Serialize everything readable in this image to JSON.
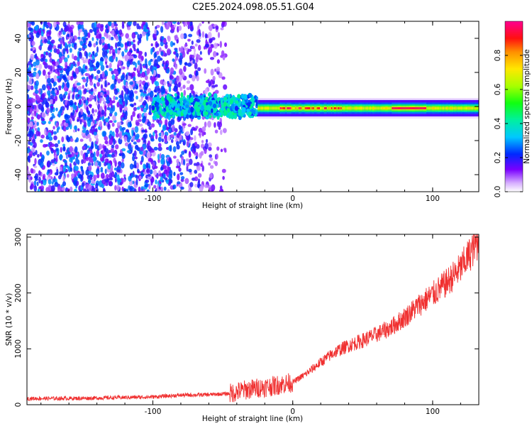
{
  "title": "C2E5.2024.098.05.51.G04",
  "colors": {
    "snr_line": "#f03030",
    "axis": "#000000",
    "background": "#ffffff"
  },
  "chart_data": [
    {
      "type": "heatmap",
      "name": "spectrogram",
      "title": "C2E5.2024.098.05.51.G04",
      "xlabel": "Height of straight line (km)",
      "ylabel": "Frequency (Hz)",
      "xlim": [
        -190,
        133
      ],
      "ylim": [
        -50,
        50
      ],
      "xticks": [
        -100,
        0,
        100
      ],
      "xtick_labels": [
        "-100",
        "0",
        "100"
      ],
      "yticks": [
        -40,
        -20,
        0,
        20,
        40
      ],
      "ytick_labels": [
        "-40",
        "-20",
        "0",
        "20",
        "40"
      ],
      "colorbar": {
        "label": "Normalized spectral amplitude",
        "range": [
          0,
          1
        ],
        "ticks": [
          0,
          0.2,
          0.4,
          0.6,
          0.8
        ],
        "tick_labels": [
          "0.0",
          "0.2",
          "0.4",
          "0.6",
          "0.8"
        ]
      },
      "features": [
        {
          "region": "noise",
          "x_range": [
            -190,
            -48
          ],
          "y_range": [
            -50,
            50
          ],
          "amplitude": [
            0.05,
            0.3
          ]
        },
        {
          "region": "signal_onset",
          "x_range": [
            -100,
            -25
          ],
          "center_freq": 0,
          "half_width": 6,
          "amplitude": [
            0.2,
            0.45
          ]
        },
        {
          "region": "tracking",
          "x_range": [
            -25,
            133
          ],
          "center_freq": -1,
          "half_width": 3,
          "amplitude": [
            0.5,
            1.0
          ]
        }
      ]
    },
    {
      "type": "line",
      "name": "snr",
      "xlabel": "Height of straight line (km)",
      "ylabel": "SNR (10 * v/v)",
      "xlim": [
        -190,
        133
      ],
      "ylim": [
        0,
        3050
      ],
      "xticks": [
        -100,
        0,
        100
      ],
      "xtick_labels": [
        "-100",
        "0",
        "100"
      ],
      "yticks": [
        0,
        1000,
        2000,
        3000
      ],
      "ytick_labels": [
        "0",
        "1000",
        "2000",
        "3000"
      ],
      "series": [
        {
          "name": "SNR",
          "x": [
            -190,
            -150,
            -100,
            -80,
            -60,
            -45,
            -35,
            -25,
            -15,
            -5,
            0,
            10,
            20,
            30,
            40,
            50,
            60,
            70,
            80,
            90,
            100,
            110,
            120,
            133
          ],
          "values": [
            110,
            115,
            140,
            170,
            180,
            200,
            260,
            300,
            330,
            380,
            400,
            560,
            760,
            940,
            1060,
            1150,
            1260,
            1380,
            1560,
            1780,
            1970,
            2180,
            2440,
            2950
          ]
        }
      ]
    }
  ]
}
